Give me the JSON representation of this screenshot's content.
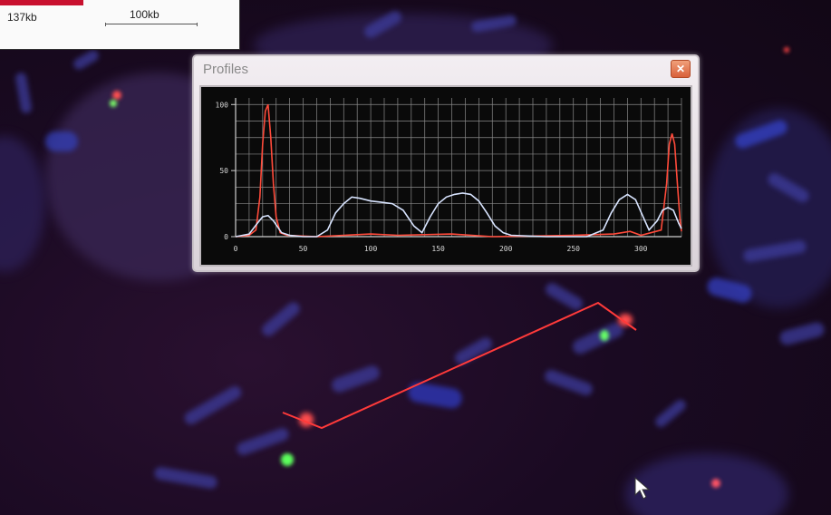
{
  "scalebar": {
    "value_label": "137kb",
    "scale_label": "100kb"
  },
  "window": {
    "title": "Profiles",
    "close_glyph": "✕"
  },
  "chart_data": {
    "type": "line",
    "x_ticks": [
      0,
      50,
      100,
      150,
      200,
      250,
      300
    ],
    "y_ticks": [
      0,
      50,
      100
    ],
    "xlim": [
      0,
      330
    ],
    "ylim": [
      0,
      105
    ],
    "grid": true,
    "series": [
      {
        "color": "#ff4a3a",
        "x": [
          0,
          10,
          15,
          18,
          20,
          22,
          24,
          26,
          28,
          30,
          33,
          38,
          60,
          80,
          100,
          120,
          160,
          190,
          250,
          280,
          292,
          300,
          315,
          319,
          321,
          323,
          325,
          327,
          329,
          330
        ],
        "y": [
          0,
          1,
          5,
          30,
          70,
          95,
          100,
          75,
          40,
          15,
          3,
          1,
          0,
          1,
          2,
          1,
          2,
          0,
          1,
          2,
          4,
          1,
          5,
          40,
          70,
          78,
          70,
          40,
          12,
          4
        ]
      },
      {
        "color": "#d8e4ff",
        "x": [
          0,
          10,
          16,
          20,
          24,
          28,
          34,
          40,
          50,
          60,
          68,
          74,
          80,
          86,
          92,
          100,
          108,
          116,
          124,
          132,
          138,
          144,
          150,
          156,
          162,
          168,
          174,
          180,
          186,
          192,
          198,
          204,
          230,
          260,
          272,
          278,
          284,
          290,
          296,
          302,
          306,
          312,
          316,
          320,
          324,
          328,
          330
        ],
        "y": [
          0,
          2,
          10,
          15,
          16,
          12,
          3,
          1,
          0,
          0,
          5,
          18,
          25,
          30,
          29,
          27,
          26,
          25,
          20,
          8,
          3,
          15,
          25,
          30,
          32,
          33,
          32,
          27,
          18,
          8,
          3,
          1,
          0,
          0,
          5,
          18,
          28,
          32,
          28,
          14,
          5,
          12,
          20,
          22,
          20,
          10,
          6
        ]
      }
    ]
  }
}
